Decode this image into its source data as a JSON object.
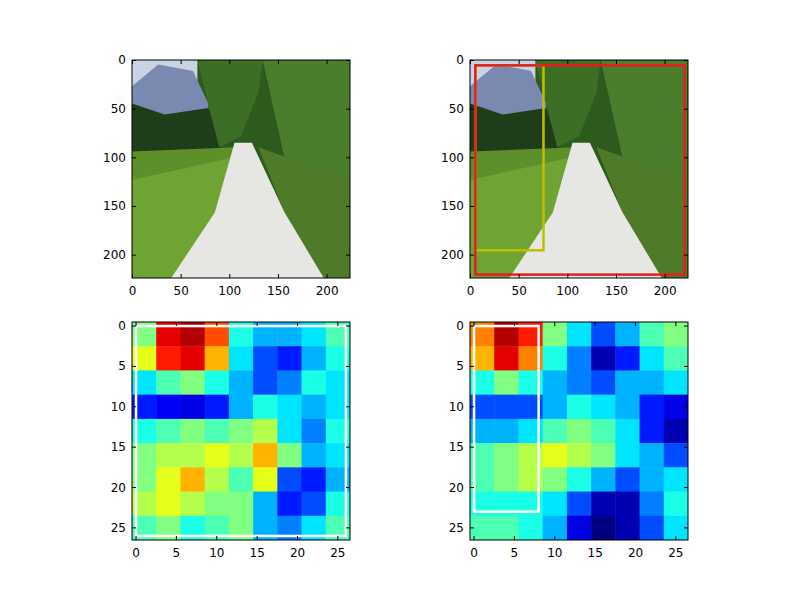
{
  "chart_data": [
    {
      "type": "image",
      "xlim": [
        -0.5,
        223.5
      ],
      "ylim": [
        223.5,
        -0.5
      ],
      "xticks": [
        0,
        50,
        100,
        150,
        200
      ],
      "yticks": [
        0,
        50,
        100,
        150,
        200
      ]
    },
    {
      "type": "image",
      "xlim": [
        -0.5,
        223.5
      ],
      "ylim": [
        223.5,
        -0.5
      ],
      "xticks": [
        0,
        50,
        100,
        150,
        200
      ],
      "yticks": [
        0,
        50,
        100,
        150,
        200
      ],
      "boxes": [
        {
          "x0": 5,
          "y0": 5,
          "x1": 75,
          "y1": 195,
          "color": "#bfbf00"
        },
        {
          "x0": 5,
          "y0": 5,
          "x1": 220,
          "y1": 220,
          "color": "#e02020"
        }
      ]
    },
    {
      "type": "heatmap",
      "xlim": [
        -0.5,
        26.5
      ],
      "ylim": [
        26.5,
        -0.5
      ],
      "xticks": [
        0,
        5,
        10,
        15,
        20,
        25
      ],
      "yticks": [
        0,
        5,
        10,
        15,
        20,
        25
      ],
      "clim": [
        0,
        1
      ],
      "cells": [
        [
          0.5,
          0.9,
          0.95,
          0.8,
          0.4,
          0.3,
          0.3,
          0.35,
          0.45
        ],
        [
          0.6,
          0.85,
          0.9,
          0.7,
          0.35,
          0.2,
          0.15,
          0.3,
          0.4
        ],
        [
          0.35,
          0.45,
          0.5,
          0.4,
          0.3,
          0.2,
          0.25,
          0.4,
          0.35
        ],
        [
          0.15,
          0.12,
          0.1,
          0.15,
          0.3,
          0.4,
          0.35,
          0.3,
          0.35
        ],
        [
          0.4,
          0.45,
          0.5,
          0.45,
          0.5,
          0.55,
          0.35,
          0.25,
          0.4
        ],
        [
          0.5,
          0.55,
          0.55,
          0.6,
          0.55,
          0.7,
          0.5,
          0.3,
          0.35
        ],
        [
          0.5,
          0.6,
          0.7,
          0.55,
          0.45,
          0.6,
          0.2,
          0.15,
          0.3
        ],
        [
          0.55,
          0.6,
          0.55,
          0.5,
          0.5,
          0.3,
          0.15,
          0.2,
          0.4
        ],
        [
          0.45,
          0.5,
          0.4,
          0.45,
          0.5,
          0.3,
          0.25,
          0.35,
          0.45
        ]
      ],
      "boxes": [
        {
          "x0": 0,
          "y0": 0,
          "x1": 26,
          "y1": 26,
          "color": "#ffffff"
        }
      ]
    },
    {
      "type": "heatmap",
      "xlim": [
        -0.5,
        26.5
      ],
      "ylim": [
        26.5,
        -0.5
      ],
      "xticks": [
        0,
        5,
        10,
        15,
        20,
        25
      ],
      "yticks": [
        0,
        5,
        10,
        15,
        20,
        25
      ],
      "clim": [
        0,
        1
      ],
      "cells": [
        [
          0.75,
          0.95,
          0.85,
          0.5,
          0.35,
          0.2,
          0.3,
          0.45,
          0.5
        ],
        [
          0.7,
          0.9,
          0.75,
          0.4,
          0.25,
          0.05,
          0.15,
          0.35,
          0.45
        ],
        [
          0.4,
          0.5,
          0.4,
          0.3,
          0.25,
          0.2,
          0.3,
          0.3,
          0.35
        ],
        [
          0.2,
          0.2,
          0.2,
          0.3,
          0.4,
          0.35,
          0.3,
          0.15,
          0.1
        ],
        [
          0.3,
          0.3,
          0.35,
          0.45,
          0.5,
          0.45,
          0.35,
          0.15,
          0.05
        ],
        [
          0.45,
          0.5,
          0.55,
          0.6,
          0.55,
          0.5,
          0.35,
          0.3,
          0.2
        ],
        [
          0.45,
          0.5,
          0.55,
          0.5,
          0.4,
          0.3,
          0.2,
          0.3,
          0.35
        ],
        [
          0.4,
          0.4,
          0.4,
          0.35,
          0.2,
          0.05,
          0.05,
          0.25,
          0.4
        ],
        [
          0.45,
          0.45,
          0.4,
          0.3,
          0.1,
          0.0,
          0.05,
          0.2,
          0.35
        ]
      ],
      "boxes": [
        {
          "x0": 0,
          "y0": 0,
          "x1": 8,
          "y1": 23,
          "color": "#ffffff"
        }
      ]
    }
  ]
}
